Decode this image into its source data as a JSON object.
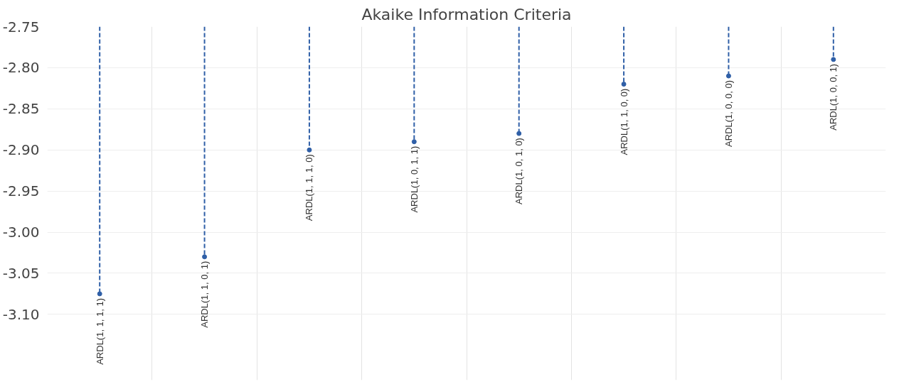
{
  "chart_data": {
    "type": "lollipop",
    "title": "Akaike Information Criteria",
    "categories": [
      "ARDL(1, 1, 1, 1)",
      "ARDL(1, 1, 0, 1)",
      "ARDL(1, 1, 1, 0)",
      "ARDL(1, 0, 1, 1)",
      "ARDL(1, 0, 1, 0)",
      "ARDL(1, 1, 0, 0)",
      "ARDL(1, 0, 0, 0)",
      "ARDL(1, 0, 0, 1)"
    ],
    "values": [
      -3.075,
      -3.03,
      -2.9,
      -2.89,
      -2.88,
      -2.82,
      -2.81,
      -2.79
    ],
    "color": "#2f5fa7",
    "ylim": [
      -3.18,
      -2.75
    ],
    "yticks": [
      {
        "value": -2.75,
        "label": "-2.75"
      },
      {
        "value": -2.8,
        "label": "-2.80"
      },
      {
        "value": -2.85,
        "label": "-2.85"
      },
      {
        "value": -2.9,
        "label": "-2.90"
      },
      {
        "value": -2.95,
        "label": "-2.95"
      },
      {
        "value": -3.0,
        "label": "-3.00"
      },
      {
        "value": -3.05,
        "label": "-3.05"
      },
      {
        "value": -3.1,
        "label": "-3.10"
      }
    ],
    "grid": true,
    "tick_labels": "y",
    "marker": "circle",
    "line_style": "dashed"
  }
}
